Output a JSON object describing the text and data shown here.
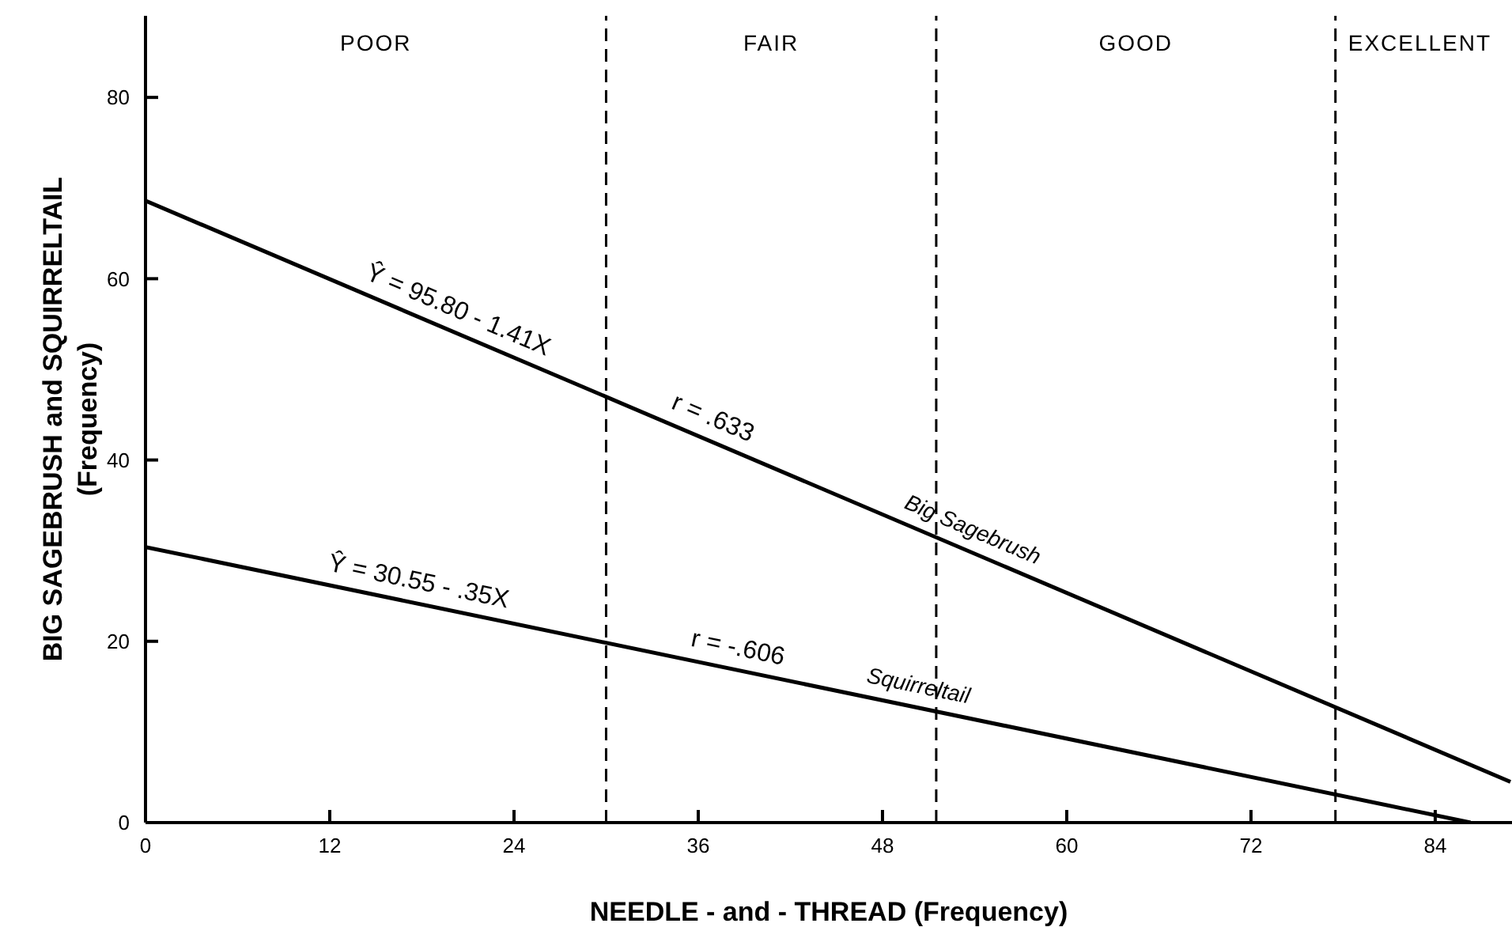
{
  "chart_data": {
    "type": "line",
    "xlabel": "NEEDLE - and - THREAD (Frequency)",
    "ylabel": "BIG SAGEBRUSH and SQUIRRELTAIL\n(Frequency)",
    "series": [
      {
        "name": "Big Sagebrush",
        "color": "#000000",
        "x": [
          0,
          88.9
        ],
        "values": [
          68.6,
          4.5
        ]
      },
      {
        "name": "Squirreltail",
        "color": "#000000",
        "x": [
          0,
          86.3
        ],
        "values": [
          30.4,
          0
        ]
      }
    ],
    "xlim": [
      0,
      89
    ],
    "xticks": [
      0,
      12,
      24,
      36,
      48,
      60,
      72,
      84
    ],
    "ylim": [
      0,
      89
    ],
    "yticks": [
      0,
      20,
      40,
      60,
      80
    ],
    "ref_lines": [
      {
        "axis": "x",
        "value": 30,
        "line_style": "dashed"
      },
      {
        "axis": "x",
        "value": 51.5,
        "line_style": "dashed"
      },
      {
        "axis": "x",
        "value": 77.5,
        "line_style": "dashed"
      }
    ],
    "annotations": [
      {
        "text": "Ŷ = 95.80 - 1.41X",
        "x": 19.8,
        "y": 54.3
      },
      {
        "text": "r = .633",
        "x": 36.4,
        "y": 42.4
      },
      {
        "text": "Ŷ = 30.55 - .35X",
        "x": 17.5,
        "y": 24.2
      },
      {
        "text": "r = -.606",
        "x": 38.3,
        "y": 16.9
      },
      "POOR",
      "FAIR",
      "GOOD",
      "EXCELLENT"
    ],
    "grid": false,
    "legend": false,
    "marker": "none",
    "line_style": "solid"
  }
}
